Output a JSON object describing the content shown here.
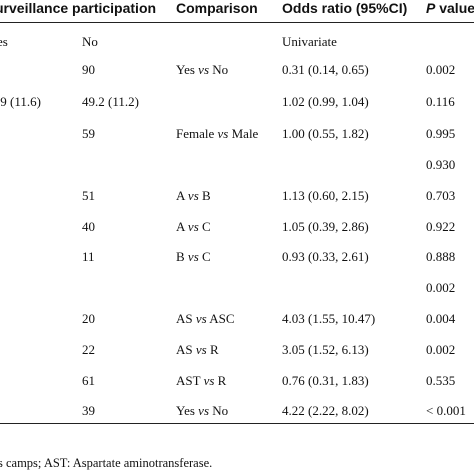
{
  "header": {
    "surveillance": "urveillance participation",
    "comparison": "Comparison",
    "odds_ratio": "Odds ratio (95%CI)",
    "p_value_p": "P",
    "p_value_rest": " value"
  },
  "rows": [
    {
      "c0": "es",
      "c1": "No",
      "cmp_a": "",
      "cmp_vs": "",
      "cmp_b": "",
      "or": "Univariate",
      "p": ""
    },
    {
      "c0": "",
      "c1": "90",
      "cmp_a": "Yes ",
      "cmp_vs": "vs",
      "cmp_b": " No",
      "or": "0.31 (0.14, 0.65)",
      "p": "0.002"
    },
    {
      "c0": ".9 (11.6)",
      "c1": "49.2 (11.2)",
      "cmp_a": "",
      "cmp_vs": "",
      "cmp_b": "",
      "or": "1.02 (0.99, 1.04)",
      "p": "0.116"
    },
    {
      "c0": "",
      "c1": "59",
      "cmp_a": "Female ",
      "cmp_vs": "vs",
      "cmp_b": " Male",
      "or": "1.00 (0.55, 1.82)",
      "p": "0.995"
    },
    {
      "c0": "",
      "c1": "",
      "cmp_a": "",
      "cmp_vs": "",
      "cmp_b": "",
      "or": "",
      "p": "0.930"
    },
    {
      "c0": "",
      "c1": "51",
      "cmp_a": "A ",
      "cmp_vs": "vs",
      "cmp_b": " B",
      "or": "1.13 (0.60, 2.15)",
      "p": "0.703"
    },
    {
      "c0": "",
      "c1": "40",
      "cmp_a": "A ",
      "cmp_vs": "vs",
      "cmp_b": " C",
      "or": "1.05 (0.39, 2.86)",
      "p": "0.922"
    },
    {
      "c0": "",
      "c1": "11",
      "cmp_a": "B ",
      "cmp_vs": "vs",
      "cmp_b": " C",
      "or": "0.93 (0.33, 2.61)",
      "p": "0.888"
    },
    {
      "c0": "",
      "c1": "",
      "cmp_a": "",
      "cmp_vs": "",
      "cmp_b": "",
      "or": "",
      "p": "0.002"
    },
    {
      "c0": "",
      "c1": "20",
      "cmp_a": "AS ",
      "cmp_vs": "vs",
      "cmp_b": " ASC",
      "or": "4.03 (1.55, 10.47)",
      "p": "0.004"
    },
    {
      "c0": "",
      "c1": "22",
      "cmp_a": "AS ",
      "cmp_vs": "vs",
      "cmp_b": " R",
      "or": "3.05 (1.52, 6.13)",
      "p": "0.002"
    },
    {
      "c0": "",
      "c1": "61",
      "cmp_a": "AST ",
      "cmp_vs": "vs",
      "cmp_b": " R",
      "or": "0.76 (0.31, 1.83)",
      "p": "0.535"
    },
    {
      "c0": "",
      "c1": "39",
      "cmp_a": "Yes ",
      "cmp_vs": "vs",
      "cmp_b": " No",
      "or": "4.22 (2.22, 8.02)",
      "p": "< 0.001"
    }
  ],
  "footnote": "s camps; AST: Aspartate aminotransferase."
}
